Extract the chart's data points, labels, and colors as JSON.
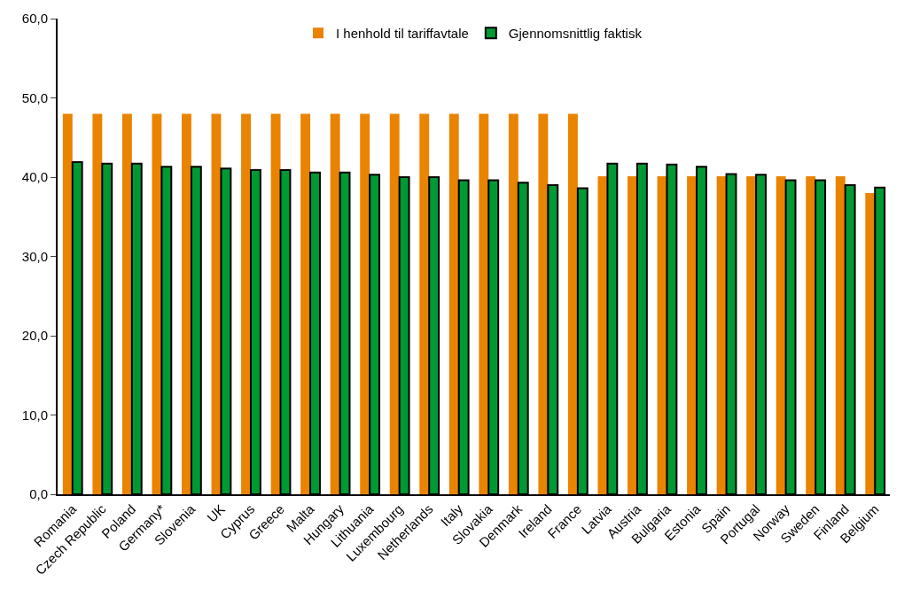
{
  "chart_data": {
    "type": "bar",
    "categories": [
      "Romania",
      "Czech Republic",
      "Poland",
      "Germany*",
      "Slovenia",
      "UK",
      "Cyprus",
      "Greece",
      "Malta",
      "Hungary",
      "Lithuania",
      "Luxembourg",
      "Netherlands",
      "Italy",
      "Slovakia",
      "Denmark",
      "Ireland",
      "France",
      "Latvia",
      "Austria",
      "Bulgaria",
      "Estonia",
      "Spain",
      "Portugal",
      "Norway",
      "Sweden",
      "Finland",
      "Belgium"
    ],
    "series": [
      {
        "name": "I henhold til tariffavtale",
        "color": "#e98300",
        "values": [
          48,
          48,
          48,
          48,
          48,
          48,
          48,
          48,
          48,
          48,
          48,
          48,
          48,
          48,
          48,
          48,
          48,
          48,
          40.1,
          40.1,
          40.1,
          40.1,
          40.1,
          40.1,
          40.1,
          40.1,
          40.1,
          38
        ]
      },
      {
        "name": "Gjennomsnittlig faktisk",
        "color": "#009933",
        "values": [
          41.9,
          41.7,
          41.7,
          41.3,
          41.3,
          41.1,
          40.9,
          40.9,
          40.6,
          40.6,
          40.3,
          40.0,
          40.0,
          39.6,
          39.6,
          39.3,
          39.0,
          38.6,
          41.7,
          41.7,
          41.6,
          41.3,
          40.4,
          40.3,
          39.6,
          39.6,
          39.0,
          38.7
        ]
      }
    ],
    "ylim": [
      0,
      60
    ],
    "yticks": [
      {
        "value": 0,
        "label": "0,0"
      },
      {
        "value": 10,
        "label": "10,0"
      },
      {
        "value": 20,
        "label": "20,0"
      },
      {
        "value": 30,
        "label": "30,0"
      },
      {
        "value": 40,
        "label": "40,0"
      },
      {
        "value": 50,
        "label": "50,0"
      },
      {
        "value": 60,
        "label": "60,0"
      }
    ],
    "legend": "top"
  }
}
